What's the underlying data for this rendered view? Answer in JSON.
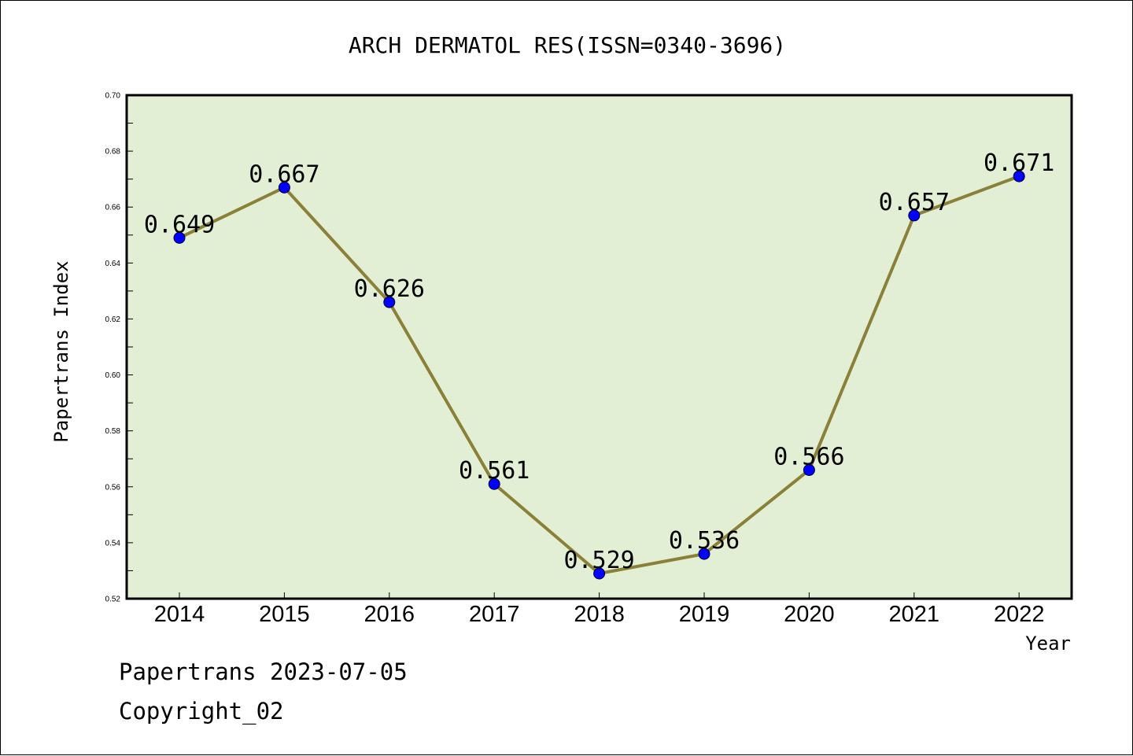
{
  "chart_data": {
    "type": "line",
    "title": "ARCH DERMATOL RES(ISSN=0340-3696)",
    "xlabel": "Year",
    "ylabel": "Papertrans Index",
    "categories": [
      "2014",
      "2015",
      "2016",
      "2017",
      "2018",
      "2019",
      "2020",
      "2021",
      "2022"
    ],
    "values": [
      0.649,
      0.667,
      0.626,
      0.561,
      0.529,
      0.536,
      0.566,
      0.657,
      0.671
    ],
    "data_labels": [
      "0.649",
      "0.667",
      "0.626",
      "0.561",
      "0.529",
      "0.536",
      "0.566",
      "0.657",
      "0.671"
    ],
    "ylim": [
      0.52,
      0.7
    ],
    "yticks": [
      0.52,
      0.54,
      0.56,
      0.58,
      0.6,
      0.62,
      0.64,
      0.66,
      0.68,
      0.7
    ],
    "ytick_labels": [
      "0.52",
      "0.54",
      "0.56",
      "0.58",
      "0.60",
      "0.62",
      "0.64",
      "0.66",
      "0.68",
      "0.70"
    ],
    "grid": false,
    "legend": "none",
    "colors": {
      "plot_background": "#e2efd5",
      "line": "#8b8038",
      "marker": "#0000ff"
    }
  },
  "footer": {
    "line1": "Papertrans 2023-07-05",
    "line2": "Copyright_02"
  }
}
